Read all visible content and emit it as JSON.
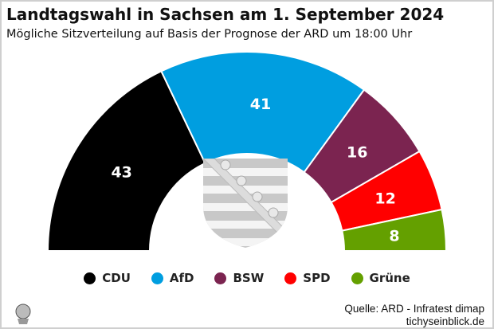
{
  "chart_data": {
    "type": "pie",
    "title": "Landtagswahl in Sachsen am 1. September 2024",
    "subtitle": "Mögliche Sitzverteilung auf Basis der Prognose der ARD um 18:00 Uhr",
    "categories": [
      "CDU",
      "AfD",
      "BSW",
      "SPD",
      "Grüne"
    ],
    "values": [
      43,
      41,
      16,
      12,
      8
    ],
    "colors": [
      "#000000",
      "#009ee0",
      "#7b2450",
      "#ff0000",
      "#64a000"
    ],
    "shape": "half-donut",
    "legend_position": "bottom"
  },
  "footer": {
    "source": "Quelle: ARD - Infratest dimap",
    "site": "tichyseinblick.de",
    "logo_icon": "tichys-einblick-head-logo",
    "emblem_icon": "saxony-coat-of-arms"
  }
}
